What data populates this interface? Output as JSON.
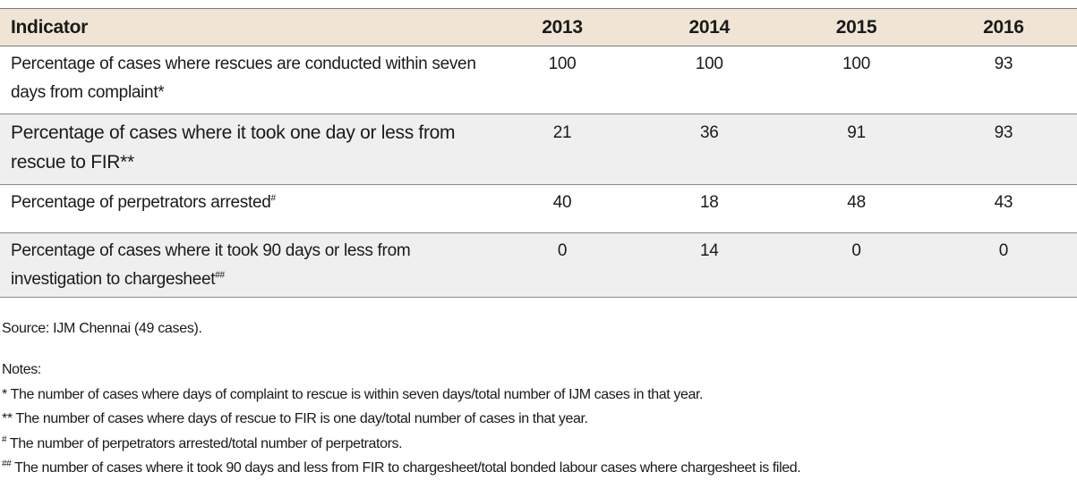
{
  "table": {
    "headers": [
      "Indicator",
      "2013",
      "2014",
      "2015",
      "2016"
    ],
    "rows": [
      {
        "indicator_lines": [
          "Percentage of cases where rescues are conducted within seven",
          "days from complaint*"
        ],
        "sup": "",
        "values": [
          "100",
          "100",
          "100",
          "93"
        ]
      },
      {
        "indicator_lines": [
          "Percentage of cases where it took one day or less from",
          "rescue to FIR**"
        ],
        "sup": "",
        "values": [
          "21",
          "36",
          "91",
          "93"
        ]
      },
      {
        "indicator_lines": [
          "Percentage of perpetrators arrested",
          ""
        ],
        "sup": "#",
        "values": [
          "40",
          "18",
          "48",
          "43"
        ]
      },
      {
        "indicator_lines": [
          "Percentage of cases where it took 90 days or less from",
          "investigation to chargesheet"
        ],
        "sup": "##",
        "values": [
          "0",
          "14",
          "0",
          "0"
        ]
      }
    ]
  },
  "source": "Source: IJM Chennai (49 cases).",
  "notes": {
    "heading": "Notes:",
    "items": [
      {
        "mark": "",
        "text": "* The number of cases where days of complaint to rescue is within seven days/total number of IJM cases in that year."
      },
      {
        "mark": "",
        "text": "** The number of cases where days of rescue to FIR is one day/total number of cases in that year."
      },
      {
        "mark": "#",
        "text": " The number of perpetrators arrested/total number of perpetrators."
      },
      {
        "mark": "##",
        "text": " The number of cases where it took 90 days and less from FIR to chargesheet/total bonded labour cases where chargesheet is filed."
      }
    ]
  }
}
